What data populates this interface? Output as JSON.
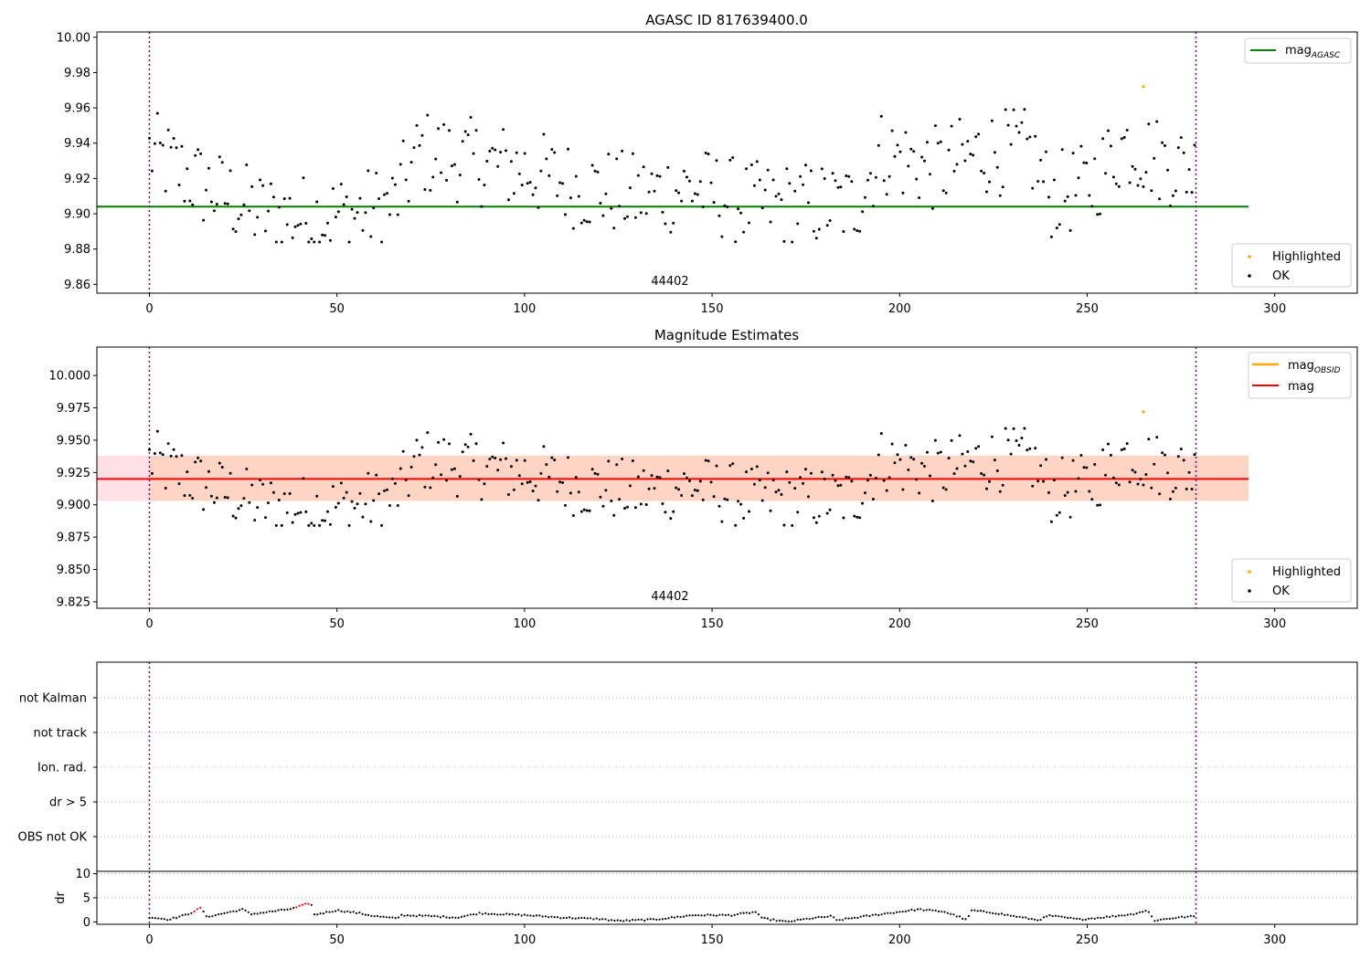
{
  "chart_data": [
    {
      "type": "scatter",
      "title": "AGASC ID 817639400.0",
      "annotation": "44402",
      "xlim": [
        -14,
        322
      ],
      "ylim": [
        9.855,
        10.003
      ],
      "xticks": [
        0,
        50,
        100,
        150,
        200,
        250,
        300
      ],
      "yticks": [
        9.86,
        9.88,
        9.9,
        9.92,
        9.94,
        9.96,
        9.98,
        10.0
      ],
      "ytick_labels": [
        "9.86",
        "9.88",
        "9.90",
        "9.92",
        "9.94",
        "9.96",
        "9.98",
        "10.00"
      ],
      "vlines": [
        0,
        279
      ],
      "hline": {
        "name": "mag",
        "sub": "AGASC",
        "y": 9.904,
        "x0": -14,
        "x1": 293,
        "color": "#008000"
      },
      "highlighted": [
        {
          "x": 265,
          "y": 9.972
        }
      ],
      "legend_lines": [
        {
          "name": "mag",
          "sub": "AGASC",
          "color": "#008000"
        }
      ],
      "legend_points": [
        {
          "name": "Highlighted",
          "color": "#ffa500"
        },
        {
          "name": "OK",
          "color": "#000000"
        }
      ],
      "grid": false
    },
    {
      "type": "scatter",
      "title": "Magnitude Estimates",
      "annotation": "44402",
      "xlim": [
        -14,
        322
      ],
      "ylim": [
        9.82,
        10.022
      ],
      "xticks": [
        0,
        50,
        100,
        150,
        200,
        250,
        300
      ],
      "yticks": [
        9.825,
        9.85,
        9.875,
        9.9,
        9.925,
        9.95,
        9.975,
        10.0
      ],
      "ytick_labels": [
        "9.825",
        "9.850",
        "9.875",
        "9.900",
        "9.925",
        "9.950",
        "9.975",
        "10.000"
      ],
      "vlines": [
        0,
        279
      ],
      "band_outer": {
        "y0": 9.903,
        "y1": 9.938,
        "x0": -14,
        "x1": 293,
        "color": "#ffe0e6"
      },
      "band_inner": {
        "y0": 9.903,
        "y1": 9.938,
        "x0": 0,
        "x1": 293,
        "color": "#fed5c4"
      },
      "hline": {
        "name": "mag",
        "y": 9.92,
        "x0": -14,
        "x1": 293,
        "color": "#ff0000"
      },
      "highlighted": [
        {
          "x": 265,
          "y": 9.972
        }
      ],
      "legend_lines": [
        {
          "name": "mag",
          "sub": "OBSID",
          "color": "#ffa500"
        },
        {
          "name": "mag",
          "sub": "",
          "color": "#ff0000"
        }
      ],
      "legend_points": [
        {
          "name": "Highlighted",
          "color": "#ffa500"
        },
        {
          "name": "OK",
          "color": "#000000"
        }
      ],
      "grid": false
    },
    {
      "type": "table",
      "categories": [
        "OBS not OK",
        "dr > 5",
        "Ion. rad.",
        "not track",
        "not Kalman"
      ],
      "xlim": [
        -14,
        322
      ],
      "vlines": [
        0,
        279
      ],
      "grid": true
    },
    {
      "type": "scatter",
      "ylabel": "dr",
      "xlim": [
        -14,
        322
      ],
      "ylim": [
        -0.5,
        10.5
      ],
      "xticks": [
        0,
        50,
        100,
        150,
        200,
        250,
        300
      ],
      "yticks": [
        0,
        5,
        10
      ],
      "ytick_labels": [
        "0",
        "5",
        "10"
      ],
      "vlines": [
        0,
        279
      ],
      "red_ranges": [
        [
          12,
          14
        ],
        [
          39,
          43
        ]
      ],
      "dr_series": [
        [
          0,
          1.0
        ],
        [
          5,
          0.5
        ],
        [
          10,
          1.5
        ],
        [
          14,
          3.0
        ],
        [
          15,
          1.0
        ],
        [
          20,
          1.8
        ],
        [
          25,
          2.6
        ],
        [
          27,
          1.6
        ],
        [
          30,
          1.9
        ],
        [
          38,
          2.7
        ],
        [
          43,
          4.0
        ],
        [
          44,
          1.5
        ],
        [
          50,
          2.4
        ],
        [
          56,
          1.8
        ],
        [
          60,
          1.2
        ],
        [
          66,
          0.7
        ],
        [
          67,
          1.4
        ],
        [
          75,
          1.2
        ],
        [
          82,
          0.9
        ],
        [
          88,
          1.8
        ],
        [
          100,
          1.4
        ],
        [
          110,
          0.9
        ],
        [
          120,
          0.6
        ],
        [
          125,
          0.2
        ],
        [
          135,
          0.5
        ],
        [
          145,
          1.4
        ],
        [
          155,
          1.4
        ],
        [
          162,
          2.1
        ],
        [
          163,
          0.8
        ],
        [
          170,
          0.0
        ],
        [
          175,
          0.6
        ],
        [
          182,
          1.2
        ],
        [
          183,
          0.3
        ],
        [
          195,
          1.6
        ],
        [
          205,
          2.6
        ],
        [
          212,
          2.1
        ],
        [
          216,
          1.0
        ],
        [
          218,
          0.3
        ],
        [
          219,
          2.4
        ],
        [
          225,
          1.9
        ],
        [
          235,
          0.6
        ],
        [
          237,
          0.4
        ],
        [
          240,
          1.3
        ],
        [
          248,
          0.5
        ],
        [
          255,
          1.0
        ],
        [
          262,
          1.6
        ],
        [
          266,
          2.4
        ],
        [
          268,
          0.3
        ],
        [
          274,
          0.9
        ],
        [
          279,
          1.2
        ]
      ],
      "grid": true
    }
  ]
}
